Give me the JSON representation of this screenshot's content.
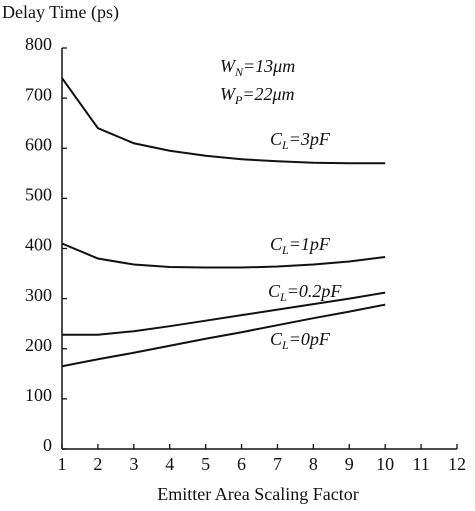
{
  "chart_data": {
    "type": "line",
    "y_label": "Delay Time (ps)",
    "x_label": "Emitter Area Scaling Factor",
    "annotations": [
      {
        "base": "W",
        "sub": "N",
        "text": "=13μm"
      },
      {
        "base": "W",
        "sub": "P",
        "text": "=22μm"
      }
    ],
    "x": [
      1,
      2,
      3,
      4,
      5,
      6,
      7,
      8,
      9,
      10
    ],
    "series": [
      {
        "label": {
          "base": "C",
          "sub": "L",
          "text": "=3pF"
        },
        "color": "#111111",
        "values": [
          740,
          640,
          610,
          595,
          585,
          578,
          574,
          571,
          570,
          570
        ]
      },
      {
        "label": {
          "base": "C",
          "sub": "L",
          "text": "=1pF"
        },
        "color": "#111111",
        "values": [
          410,
          380,
          368,
          363,
          362,
          362,
          364,
          368,
          374,
          383
        ]
      },
      {
        "label": {
          "base": "C",
          "sub": "L",
          "text": "=0.2pF"
        },
        "color": "#111111",
        "values": [
          228,
          228,
          235,
          245,
          256,
          267,
          278,
          289,
          300,
          312
        ]
      },
      {
        "label": {
          "base": "C",
          "sub": "L",
          "text": "=0pF"
        },
        "color": "#111111",
        "values": [
          165,
          179,
          192,
          206,
          220,
          233,
          247,
          261,
          274,
          288
        ]
      }
    ],
    "xlim": [
      1,
      12
    ],
    "xticks": [
      1,
      2,
      3,
      4,
      5,
      6,
      7,
      8,
      9,
      10,
      11,
      12
    ],
    "ylim": [
      0,
      800
    ],
    "yticks": [
      0,
      100,
      200,
      300,
      400,
      500,
      600,
      700,
      800
    ],
    "grid": false
  }
}
